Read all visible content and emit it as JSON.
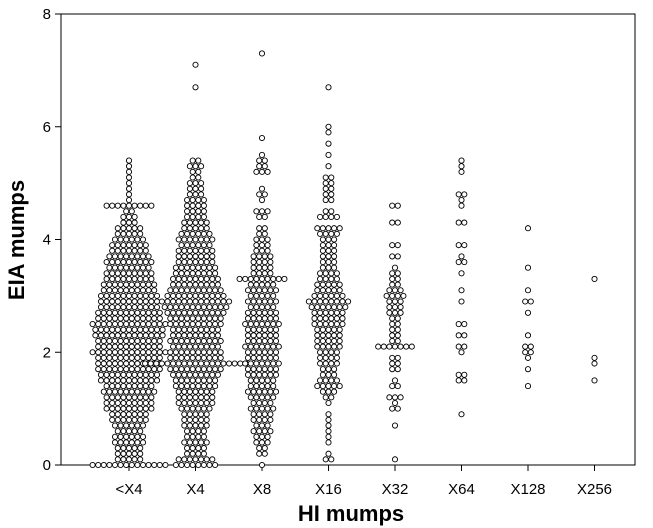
{
  "chart_data": {
    "type": "scatter",
    "subtype": "dot-plot",
    "title": "",
    "xlabel": "HI mumps",
    "ylabel": "EIA mumps",
    "categories": [
      "<X4",
      "X4",
      "X8",
      "X16",
      "X32",
      "X64",
      "X128",
      "X256"
    ],
    "ylim": [
      0,
      8
    ],
    "yticks": [
      0,
      2,
      4,
      6,
      8
    ],
    "grid": false,
    "legend": "none",
    "marker": "open-circle",
    "colors": {
      "marker_stroke": "#000000",
      "marker_fill": "#ffffff",
      "axis": "#000000",
      "background": "#ffffff"
    },
    "series": [
      {
        "category": "<X4",
        "bins": [
          [
            0.0,
            14
          ],
          [
            0.1,
            5
          ],
          [
            0.2,
            5
          ],
          [
            0.3,
            5
          ],
          [
            0.4,
            6
          ],
          [
            0.5,
            6
          ],
          [
            0.6,
            5
          ],
          [
            0.7,
            6
          ],
          [
            0.8,
            7
          ],
          [
            0.9,
            7
          ],
          [
            1.0,
            9
          ],
          [
            1.1,
            9
          ],
          [
            1.2,
            9
          ],
          [
            1.3,
            10
          ],
          [
            1.4,
            9
          ],
          [
            1.5,
            11
          ],
          [
            1.6,
            11
          ],
          [
            1.7,
            12
          ],
          [
            1.8,
            12
          ],
          [
            1.9,
            12
          ],
          [
            2.0,
            14
          ],
          [
            2.1,
            12
          ],
          [
            2.2,
            12
          ],
          [
            2.3,
            13
          ],
          [
            2.4,
            13
          ],
          [
            2.5,
            14
          ],
          [
            2.6,
            12
          ],
          [
            2.7,
            12
          ],
          [
            2.8,
            11
          ],
          [
            2.9,
            11
          ],
          [
            3.0,
            11
          ],
          [
            3.1,
            10
          ],
          [
            3.2,
            10
          ],
          [
            3.3,
            9
          ],
          [
            3.4,
            9
          ],
          [
            3.5,
            8
          ],
          [
            3.6,
            9
          ],
          [
            3.7,
            8
          ],
          [
            3.8,
            7
          ],
          [
            3.9,
            7
          ],
          [
            4.0,
            6
          ],
          [
            4.1,
            5
          ],
          [
            4.2,
            5
          ],
          [
            4.3,
            3
          ],
          [
            4.4,
            3
          ],
          [
            4.5,
            2
          ],
          [
            4.6,
            9
          ],
          [
            4.7,
            1
          ],
          [
            4.8,
            1
          ],
          [
            4.9,
            1
          ],
          [
            5.0,
            1
          ],
          [
            5.1,
            1
          ],
          [
            5.2,
            1
          ],
          [
            5.3,
            1
          ],
          [
            5.4,
            1
          ]
        ]
      },
      {
        "category": "X4",
        "bins": [
          [
            0.0,
            8
          ],
          [
            0.1,
            7
          ],
          [
            0.2,
            4
          ],
          [
            0.3,
            4
          ],
          [
            0.4,
            5
          ],
          [
            0.5,
            4
          ],
          [
            0.6,
            4
          ],
          [
            0.7,
            5
          ],
          [
            0.8,
            5
          ],
          [
            0.9,
            5
          ],
          [
            1.0,
            6
          ],
          [
            1.1,
            7
          ],
          [
            1.2,
            7
          ],
          [
            1.3,
            7
          ],
          [
            1.4,
            8
          ],
          [
            1.5,
            8
          ],
          [
            1.6,
            9
          ],
          [
            1.7,
            10
          ],
          [
            1.8,
            19
          ],
          [
            1.9,
            10
          ],
          [
            2.0,
            10
          ],
          [
            2.1,
            9
          ],
          [
            2.2,
            10
          ],
          [
            2.3,
            9
          ],
          [
            2.4,
            9
          ],
          [
            2.5,
            10
          ],
          [
            2.6,
            10
          ],
          [
            2.7,
            11
          ],
          [
            2.8,
            12
          ],
          [
            2.9,
            13
          ],
          [
            3.0,
            11
          ],
          [
            3.1,
            10
          ],
          [
            3.2,
            9
          ],
          [
            3.3,
            9
          ],
          [
            3.4,
            8
          ],
          [
            3.5,
            8
          ],
          [
            3.6,
            7
          ],
          [
            3.7,
            7
          ],
          [
            3.8,
            7
          ],
          [
            3.9,
            6
          ],
          [
            4.0,
            7
          ],
          [
            4.1,
            6
          ],
          [
            4.2,
            5
          ],
          [
            4.3,
            5
          ],
          [
            4.4,
            4
          ],
          [
            4.5,
            4
          ],
          [
            4.6,
            4
          ],
          [
            4.7,
            4
          ],
          [
            4.8,
            3
          ],
          [
            4.9,
            3
          ],
          [
            5.0,
            3
          ],
          [
            5.1,
            2
          ],
          [
            5.2,
            2
          ],
          [
            5.3,
            3
          ],
          [
            5.4,
            2
          ],
          [
            6.7,
            1
          ],
          [
            7.1,
            1
          ]
        ]
      },
      {
        "category": "X8",
        "bins": [
          [
            0.0,
            1
          ],
          [
            0.2,
            2
          ],
          [
            0.3,
            2
          ],
          [
            0.4,
            3
          ],
          [
            0.5,
            3
          ],
          [
            0.6,
            4
          ],
          [
            0.7,
            3
          ],
          [
            0.8,
            4
          ],
          [
            0.9,
            4
          ],
          [
            1.0,
            5
          ],
          [
            1.1,
            4
          ],
          [
            1.2,
            5
          ],
          [
            1.3,
            6
          ],
          [
            1.4,
            5
          ],
          [
            1.5,
            5
          ],
          [
            1.6,
            6
          ],
          [
            1.7,
            6
          ],
          [
            1.8,
            7
          ],
          [
            1.9,
            6
          ],
          [
            2.0,
            6
          ],
          [
            2.1,
            7
          ],
          [
            2.2,
            6
          ],
          [
            2.3,
            6
          ],
          [
            2.4,
            6
          ],
          [
            2.5,
            7
          ],
          [
            2.6,
            6
          ],
          [
            2.7,
            6
          ],
          [
            2.8,
            5
          ],
          [
            2.9,
            6
          ],
          [
            3.0,
            5
          ],
          [
            3.1,
            6
          ],
          [
            3.2,
            5
          ],
          [
            3.3,
            9
          ],
          [
            3.4,
            4
          ],
          [
            3.5,
            4
          ],
          [
            3.6,
            4
          ],
          [
            3.7,
            4
          ],
          [
            3.8,
            3
          ],
          [
            3.9,
            3
          ],
          [
            4.0,
            3
          ],
          [
            4.1,
            2
          ],
          [
            4.2,
            2
          ],
          [
            4.4,
            2
          ],
          [
            4.5,
            3
          ],
          [
            4.7,
            1
          ],
          [
            4.8,
            2
          ],
          [
            4.9,
            1
          ],
          [
            5.2,
            3
          ],
          [
            5.3,
            2
          ],
          [
            5.4,
            2
          ],
          [
            5.5,
            1
          ],
          [
            5.8,
            1
          ],
          [
            7.3,
            1
          ]
        ]
      },
      {
        "category": "X16",
        "bins": [
          [
            0.1,
            2
          ],
          [
            0.2,
            1
          ],
          [
            0.4,
            1
          ],
          [
            0.5,
            1
          ],
          [
            0.6,
            1
          ],
          [
            0.7,
            1
          ],
          [
            0.8,
            1
          ],
          [
            0.9,
            1
          ],
          [
            1.1,
            1
          ],
          [
            1.2,
            2
          ],
          [
            1.3,
            3
          ],
          [
            1.4,
            5
          ],
          [
            1.5,
            4
          ],
          [
            1.6,
            3
          ],
          [
            1.7,
            3
          ],
          [
            1.8,
            4
          ],
          [
            1.9,
            4
          ],
          [
            2.0,
            4
          ],
          [
            2.1,
            5
          ],
          [
            2.2,
            5
          ],
          [
            2.3,
            5
          ],
          [
            2.4,
            5
          ],
          [
            2.5,
            6
          ],
          [
            2.6,
            6
          ],
          [
            2.7,
            6
          ],
          [
            2.8,
            7
          ],
          [
            2.9,
            8
          ],
          [
            3.0,
            6
          ],
          [
            3.1,
            5
          ],
          [
            3.2,
            5
          ],
          [
            3.3,
            4
          ],
          [
            3.4,
            4
          ],
          [
            3.5,
            3
          ],
          [
            3.6,
            3
          ],
          [
            3.7,
            3
          ],
          [
            3.8,
            3
          ],
          [
            3.9,
            3
          ],
          [
            4.0,
            3
          ],
          [
            4.1,
            4
          ],
          [
            4.2,
            5
          ],
          [
            4.4,
            4
          ],
          [
            4.5,
            2
          ],
          [
            4.7,
            2
          ],
          [
            4.8,
            2
          ],
          [
            4.9,
            2
          ],
          [
            5.0,
            2
          ],
          [
            5.1,
            2
          ],
          [
            5.3,
            1
          ],
          [
            5.5,
            1
          ],
          [
            5.7,
            1
          ],
          [
            5.9,
            1
          ],
          [
            6.0,
            1
          ],
          [
            6.7,
            1
          ]
        ]
      },
      {
        "category": "X32",
        "bins": [
          [
            0.1,
            1
          ],
          [
            0.7,
            1
          ],
          [
            1.0,
            2
          ],
          [
            1.1,
            1
          ],
          [
            1.2,
            3
          ],
          [
            1.4,
            2
          ],
          [
            1.5,
            1
          ],
          [
            1.7,
            2
          ],
          [
            1.8,
            2
          ],
          [
            1.9,
            2
          ],
          [
            2.1,
            7
          ],
          [
            2.2,
            2
          ],
          [
            2.3,
            2
          ],
          [
            2.4,
            2
          ],
          [
            2.5,
            2
          ],
          [
            2.6,
            2
          ],
          [
            2.7,
            3
          ],
          [
            2.8,
            3
          ],
          [
            2.9,
            3
          ],
          [
            3.0,
            4
          ],
          [
            3.1,
            3
          ],
          [
            3.2,
            2
          ],
          [
            3.3,
            2
          ],
          [
            3.4,
            2
          ],
          [
            3.5,
            1
          ],
          [
            3.7,
            2
          ],
          [
            3.9,
            2
          ],
          [
            4.3,
            2
          ],
          [
            4.6,
            2
          ]
        ]
      },
      {
        "category": "X64",
        "bins": [
          [
            0.9,
            1
          ],
          [
            1.5,
            2
          ],
          [
            1.6,
            2
          ],
          [
            2.0,
            1
          ],
          [
            2.1,
            2
          ],
          [
            2.3,
            2
          ],
          [
            2.5,
            2
          ],
          [
            2.9,
            1
          ],
          [
            3.1,
            1
          ],
          [
            3.4,
            1
          ],
          [
            3.6,
            2
          ],
          [
            3.7,
            1
          ],
          [
            3.9,
            2
          ],
          [
            4.3,
            2
          ],
          [
            4.6,
            1
          ],
          [
            4.7,
            1
          ],
          [
            4.8,
            2
          ],
          [
            5.2,
            1
          ],
          [
            5.3,
            1
          ],
          [
            5.4,
            1
          ]
        ]
      },
      {
        "category": "X128",
        "bins": [
          [
            1.4,
            1
          ],
          [
            1.7,
            1
          ],
          [
            1.9,
            1
          ],
          [
            2.0,
            2
          ],
          [
            2.1,
            2
          ],
          [
            2.3,
            1
          ],
          [
            2.7,
            1
          ],
          [
            2.9,
            2
          ],
          [
            3.1,
            1
          ],
          [
            3.5,
            1
          ],
          [
            4.2,
            1
          ]
        ]
      },
      {
        "category": "X256",
        "bins": [
          [
            1.5,
            1
          ],
          [
            1.8,
            1
          ],
          [
            1.9,
            1
          ],
          [
            3.3,
            1
          ]
        ]
      }
    ]
  }
}
